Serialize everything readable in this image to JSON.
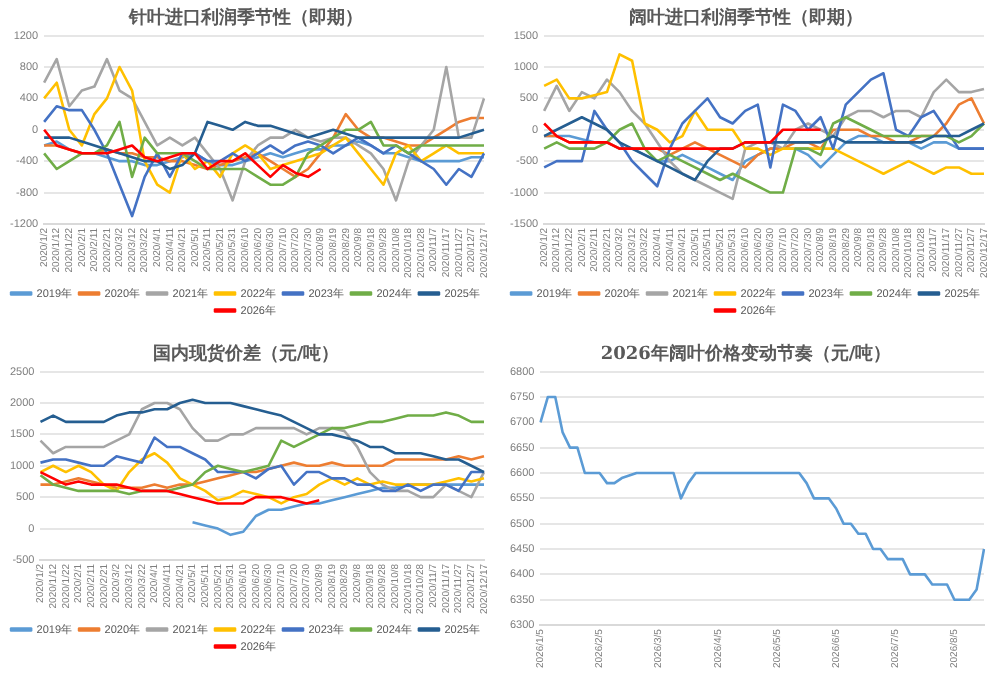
{
  "chart_data": [
    {
      "type": "line",
      "title": "针叶进口利润季节性（即期）",
      "categories": [
        "2020/1/2",
        "2020/1/12",
        "2020/1/22",
        "2020/2/1",
        "2020/2/11",
        "2020/2/21",
        "2020/3/2",
        "2020/3/12",
        "2020/3/22",
        "2020/4/1",
        "2020/4/11",
        "2020/4/21",
        "2020/5/1",
        "2020/5/11",
        "2020/5/21",
        "2020/5/31",
        "2020/6/10",
        "2020/6/20",
        "2020/6/30",
        "2020/7/10",
        "2020/7/20",
        "2020/7/30",
        "2020/8/9",
        "2020/8/19",
        "2020/8/29",
        "2020/9/8",
        "2020/9/18",
        "2020/9/28",
        "2020/10/8",
        "2020/10/18",
        "2020/10/28",
        "2020/11/7",
        "2020/11/17",
        "2020/11/27",
        "2020/12/7",
        "2020/12/17"
      ],
      "ylim": [
        -1200,
        1200
      ],
      "yticks": [
        -1200,
        -800,
        -400,
        0,
        400,
        800,
        1200
      ],
      "grid": "y",
      "legend": "bottom",
      "marker": "none",
      "series": [
        {
          "name": "2019年",
          "color": "#5b9bd5",
          "values": [
            -200,
            -150,
            -250,
            -300,
            -300,
            -350,
            -400,
            -400,
            -450,
            -450,
            -400,
            -350,
            -300,
            -400,
            -450,
            -450,
            -400,
            -350,
            -300,
            -350,
            -300,
            -250,
            -250,
            -200,
            -200,
            -150,
            -200,
            -300,
            -300,
            -350,
            -400,
            -400,
            -400,
            -400,
            -350,
            -350
          ]
        },
        {
          "name": "2020年",
          "color": "#ed7d31",
          "values": [
            -200,
            -200,
            -250,
            -300,
            -300,
            -250,
            -300,
            -300,
            -350,
            -350,
            -400,
            -400,
            -450,
            -500,
            -450,
            -400,
            -350,
            -300,
            -400,
            -500,
            -600,
            -500,
            -300,
            -100,
            200,
            0,
            -100,
            -100,
            -150,
            -200,
            -200,
            -100,
            0,
            100,
            150,
            150
          ]
        },
        {
          "name": "2021年",
          "color": "#a5a5a5",
          "values": [
            600,
            900,
            300,
            500,
            550,
            900,
            500,
            400,
            100,
            -200,
            -100,
            -200,
            -100,
            -300,
            -500,
            -900,
            -400,
            -200,
            -100,
            -100,
            0,
            -100,
            -150,
            -100,
            -100,
            -200,
            -300,
            -500,
            -900,
            -400,
            -200,
            0,
            800,
            -100,
            -100,
            400
          ]
        },
        {
          "name": "2022年",
          "color": "#ffc000",
          "values": [
            400,
            600,
            0,
            -200,
            200,
            400,
            800,
            500,
            -400,
            -700,
            -800,
            -300,
            -500,
            -400,
            -600,
            -300,
            -200,
            -300,
            -500,
            -450,
            -400,
            -350,
            -300,
            -200,
            -100,
            -300,
            -500,
            -700,
            -300,
            -200,
            -400,
            -300,
            -200,
            -300,
            -300,
            -300
          ]
        },
        {
          "name": "2023年",
          "color": "#4472c4",
          "values": [
            100,
            300,
            250,
            250,
            0,
            -300,
            -700,
            -1100,
            -600,
            -300,
            -600,
            -300,
            -300,
            -400,
            -400,
            -300,
            -400,
            -300,
            -200,
            -300,
            -200,
            -150,
            -200,
            -300,
            -200,
            -100,
            -200,
            -300,
            -200,
            -300,
            -400,
            -500,
            -700,
            -500,
            -600,
            -300
          ]
        },
        {
          "name": "2024年",
          "color": "#70ad47",
          "values": [
            -300,
            -500,
            -400,
            -300,
            -300,
            -200,
            100,
            -600,
            -100,
            -300,
            -300,
            -300,
            -400,
            -500,
            -500,
            -500,
            -500,
            -600,
            -700,
            -700,
            -600,
            -300,
            -200,
            -100,
            0,
            0,
            100,
            -200,
            -200,
            -300,
            -200,
            -200,
            -200,
            -200,
            -200,
            -200
          ]
        },
        {
          "name": "2025年",
          "color": "#255e91",
          "values": [
            -100,
            -100,
            -100,
            -150,
            -200,
            -250,
            -300,
            -350,
            -400,
            -400,
            -500,
            -450,
            -300,
            100,
            50,
            0,
            100,
            50,
            50,
            0,
            -50,
            -100,
            -50,
            0,
            -50,
            -100,
            -100,
            -100,
            -100,
            -100,
            -100,
            -100,
            -100,
            -100,
            -50,
            0
          ]
        },
        {
          "name": "2026年",
          "color": "#ff0000",
          "values": [
            0,
            -200,
            -250,
            -300,
            -300,
            -300,
            -250,
            -200,
            -350,
            -400,
            -350,
            -300,
            -300,
            -500,
            -400,
            -400,
            -300,
            -450,
            -600,
            -450,
            -550,
            -600,
            -500,
            null,
            null,
            null,
            null,
            null,
            null,
            null,
            null,
            null,
            null,
            null,
            null,
            null
          ]
        }
      ]
    },
    {
      "type": "line",
      "title": "阔叶进口利润季节性（即期）",
      "categories": [
        "2020/1/2",
        "2020/1/12",
        "2020/1/22",
        "2020/2/1",
        "2020/2/11",
        "2020/2/21",
        "2020/3/2",
        "2020/3/12",
        "2020/3/22",
        "2020/4/1",
        "2020/4/11",
        "2020/4/21",
        "2020/5/1",
        "2020/5/11",
        "2020/5/21",
        "2020/5/31",
        "2020/6/10",
        "2020/6/20",
        "2020/6/30",
        "2020/7/10",
        "2020/7/20",
        "2020/7/30",
        "2020/8/9",
        "2020/8/19",
        "2020/8/29",
        "2020/9/8",
        "2020/9/18",
        "2020/9/28",
        "2020/10/8",
        "2020/10/18",
        "2020/10/28",
        "2020/11/7",
        "2020/11/17",
        "2020/11/27",
        "2020/12/7",
        "2020/12/17"
      ],
      "ylim": [
        -1500,
        1500
      ],
      "yticks": [
        -1500,
        -1000,
        -500,
        0,
        500,
        1000,
        1500
      ],
      "grid": "y",
      "legend": "bottom",
      "marker": "none",
      "series": [
        {
          "name": "2019年",
          "color": "#5b9bd5",
          "values": [
            -100,
            -100,
            -100,
            -150,
            -200,
            -200,
            -300,
            -300,
            -400,
            -500,
            -500,
            -400,
            -500,
            -600,
            -700,
            -800,
            -500,
            -400,
            -300,
            -300,
            -300,
            -400,
            -600,
            -400,
            -200,
            -100,
            -100,
            -200,
            -200,
            -200,
            -300,
            -200,
            -200,
            -300,
            -300,
            -300
          ]
        },
        {
          "name": "2020年",
          "color": "#ed7d31",
          "values": [
            -100,
            -100,
            -200,
            -200,
            -200,
            -200,
            -300,
            -300,
            -300,
            -300,
            -400,
            -300,
            -200,
            -300,
            -400,
            -500,
            -600,
            -400,
            -300,
            -300,
            -200,
            -200,
            -300,
            0,
            0,
            0,
            -100,
            -100,
            -200,
            -200,
            -100,
            -100,
            100,
            400,
            500,
            100
          ]
        },
        {
          "name": "2021年",
          "color": "#a5a5a5",
          "values": [
            300,
            700,
            300,
            600,
            500,
            800,
            600,
            300,
            100,
            -200,
            -500,
            -700,
            -800,
            -900,
            -1000,
            -1100,
            -300,
            -200,
            -200,
            -300,
            0,
            100,
            0,
            -100,
            200,
            300,
            300,
            200,
            300,
            300,
            200,
            600,
            800,
            600,
            600,
            650
          ]
        },
        {
          "name": "2022年",
          "color": "#ffc000",
          "values": [
            700,
            800,
            500,
            500,
            550,
            600,
            1200,
            1100,
            100,
            0,
            -200,
            -100,
            300,
            0,
            0,
            0,
            -300,
            -300,
            -400,
            -300,
            -300,
            -300,
            -300,
            -300,
            -400,
            -500,
            -600,
            -700,
            -600,
            -500,
            -600,
            -700,
            -600,
            -600,
            -700,
            -700
          ]
        },
        {
          "name": "2023年",
          "color": "#4472c4",
          "values": [
            -600,
            -500,
            -500,
            -500,
            300,
            0,
            -200,
            -500,
            -700,
            -900,
            -300,
            100,
            300,
            500,
            200,
            100,
            300,
            400,
            -600,
            400,
            300,
            0,
            200,
            -300,
            400,
            600,
            800,
            900,
            0,
            -100,
            200,
            300,
            0,
            -300,
            -300,
            -300
          ]
        },
        {
          "name": "2024年",
          "color": "#70ad47",
          "values": [
            -300,
            -200,
            -300,
            -300,
            -300,
            -200,
            0,
            100,
            -300,
            -500,
            -400,
            -500,
            -600,
            -700,
            -800,
            -700,
            -800,
            -900,
            -1000,
            -1000,
            -300,
            -300,
            -400,
            100,
            200,
            100,
            0,
            -100,
            -100,
            -100,
            -100,
            -100,
            -100,
            -200,
            -100,
            100
          ]
        },
        {
          "name": "2025年",
          "color": "#255e91",
          "values": [
            -100,
            0,
            100,
            200,
            100,
            0,
            -200,
            -300,
            -400,
            -500,
            -600,
            -700,
            -800,
            -500,
            -300,
            -300,
            -200,
            -200,
            -200,
            -200,
            -200,
            -200,
            -200,
            -100,
            -200,
            -200,
            -200,
            -200,
            -200,
            -200,
            -200,
            -100,
            -100,
            -100,
            0,
            100
          ]
        },
        {
          "name": "2026年",
          "color": "#ff0000",
          "values": [
            100,
            -100,
            -200,
            -200,
            -200,
            -200,
            -300,
            -300,
            -300,
            -300,
            -300,
            -300,
            -300,
            -300,
            -300,
            -300,
            -200,
            -200,
            -200,
            0,
            0,
            0,
            0,
            null,
            null,
            null,
            null,
            null,
            null,
            null,
            null,
            null,
            null,
            null,
            null,
            null
          ]
        }
      ]
    },
    {
      "type": "line",
      "title": "国内现货价差（元/吨）",
      "categories": [
        "2020/1/2",
        "2020/1/12",
        "2020/1/22",
        "2020/2/1",
        "2020/2/11",
        "2020/2/21",
        "2020/3/2",
        "2020/3/12",
        "2020/3/22",
        "2020/4/1",
        "2020/4/11",
        "2020/4/21",
        "2020/5/1",
        "2020/5/11",
        "2020/5/21",
        "2020/5/31",
        "2020/6/10",
        "2020/6/20",
        "2020/6/30",
        "2020/7/10",
        "2020/7/20",
        "2020/7/30",
        "2020/8/9",
        "2020/8/19",
        "2020/8/29",
        "2020/9/8",
        "2020/9/18",
        "2020/9/28",
        "2020/10/8",
        "2020/10/18",
        "2020/10/28",
        "2020/11/7",
        "2020/11/17",
        "2020/11/27",
        "2020/12/7",
        "2020/12/17"
      ],
      "ylim": [
        -500,
        2500
      ],
      "yticks": [
        -500,
        0,
        500,
        1000,
        1500,
        2000,
        2500
      ],
      "grid": "y",
      "legend": "bottom",
      "marker": "none",
      "series": [
        {
          "name": "2019年",
          "color": "#5b9bd5",
          "values": [
            null,
            null,
            null,
            null,
            null,
            null,
            null,
            null,
            null,
            null,
            null,
            null,
            100,
            50,
            0,
            -100,
            -50,
            200,
            300,
            300,
            350,
            400,
            400,
            450,
            500,
            550,
            600,
            650,
            650,
            700,
            700,
            700,
            700,
            700,
            700,
            700
          ]
        },
        {
          "name": "2020年",
          "color": "#ed7d31",
          "values": [
            700,
            700,
            750,
            800,
            750,
            700,
            650,
            650,
            650,
            700,
            650,
            700,
            700,
            750,
            800,
            850,
            900,
            900,
            950,
            1000,
            1050,
            1000,
            1000,
            1050,
            1000,
            1000,
            1000,
            1000,
            1100,
            1100,
            1100,
            1100,
            1100,
            1150,
            1100,
            1150
          ]
        },
        {
          "name": "2021年",
          "color": "#a5a5a5",
          "values": [
            1400,
            1200,
            1300,
            1300,
            1300,
            1300,
            1400,
            1500,
            1900,
            2000,
            2000,
            1900,
            1600,
            1400,
            1400,
            1500,
            1500,
            1600,
            1600,
            1600,
            1600,
            1500,
            1600,
            1600,
            1550,
            1300,
            900,
            700,
            600,
            600,
            500,
            500,
            700,
            600,
            500,
            900
          ]
        },
        {
          "name": "2022年",
          "color": "#ffc000",
          "values": [
            900,
            1000,
            900,
            1000,
            900,
            700,
            600,
            900,
            1100,
            1200,
            1050,
            800,
            700,
            600,
            450,
            500,
            600,
            550,
            500,
            400,
            500,
            550,
            700,
            800,
            700,
            800,
            700,
            750,
            700,
            700,
            700,
            700,
            750,
            800,
            750,
            800
          ]
        },
        {
          "name": "2023年",
          "color": "#4472c4",
          "values": [
            1050,
            1100,
            1100,
            1050,
            1000,
            1000,
            1150,
            1100,
            1050,
            1450,
            1300,
            1300,
            1200,
            1100,
            900,
            900,
            900,
            800,
            950,
            1000,
            700,
            900,
            900,
            800,
            800,
            700,
            700,
            600,
            600,
            700,
            600,
            700,
            700,
            600,
            900,
            900
          ]
        },
        {
          "name": "2024年",
          "color": "#70ad47",
          "values": [
            850,
            700,
            650,
            600,
            600,
            600,
            600,
            550,
            600,
            600,
            600,
            650,
            700,
            900,
            1000,
            950,
            900,
            950,
            1000,
            1400,
            1300,
            1400,
            1500,
            1600,
            1600,
            1650,
            1700,
            1700,
            1750,
            1800,
            1800,
            1800,
            1850,
            1800,
            1700,
            1700
          ]
        },
        {
          "name": "2025年",
          "color": "#255e91",
          "values": [
            1700,
            1800,
            1700,
            1700,
            1700,
            1700,
            1800,
            1850,
            1850,
            1900,
            1900,
            2000,
            2050,
            2000,
            2000,
            2000,
            1950,
            1900,
            1850,
            1800,
            1700,
            1600,
            1500,
            1500,
            1450,
            1400,
            1300,
            1300,
            1200,
            1200,
            1200,
            1150,
            1100,
            1100,
            1000,
            900
          ]
        },
        {
          "name": "2026年",
          "color": "#ff0000",
          "values": [
            900,
            800,
            700,
            750,
            700,
            700,
            700,
            650,
            600,
            600,
            600,
            550,
            500,
            450,
            400,
            400,
            400,
            500,
            500,
            500,
            450,
            400,
            450,
            null,
            null,
            null,
            null,
            null,
            null,
            null,
            null,
            null,
            null,
            null,
            null,
            null
          ]
        }
      ]
    },
    {
      "type": "line",
      "title": "2026年阔叶价格变动节奏（元/吨）",
      "categories": [
        "2026/1/5",
        null,
        null,
        null,
        null,
        null,
        null,
        null,
        "2026/2/5",
        null,
        null,
        null,
        null,
        null,
        null,
        null,
        "2026/3/5",
        null,
        null,
        null,
        null,
        null,
        null,
        null,
        "2026/4/5",
        null,
        null,
        null,
        null,
        null,
        null,
        null,
        "2026/5/5",
        null,
        null,
        null,
        null,
        null,
        null,
        null,
        "2026/6/5",
        null,
        null,
        null,
        null,
        null,
        null,
        null,
        "2026/7/5",
        null,
        null,
        null,
        null,
        null,
        null,
        null,
        "2026/8/5",
        null,
        null,
        null,
        null
      ],
      "ylim": [
        6300,
        6800
      ],
      "yticks": [
        6300,
        6350,
        6400,
        6450,
        6500,
        6550,
        6600,
        6650,
        6700,
        6750,
        6800
      ],
      "grid": "y",
      "marker": "none",
      "series": [
        {
          "color": "#5b9bd5",
          "values": [
            6700,
            6750,
            6750,
            6680,
            6650,
            6650,
            6600,
            6600,
            6600,
            6580,
            6580,
            6590,
            6595,
            6600,
            6600,
            6600,
            6600,
            6600,
            6600,
            6550,
            6580,
            6600,
            6600,
            6600,
            6600,
            6600,
            6600,
            6600,
            6600,
            6600,
            6600,
            6600,
            6600,
            6600,
            6600,
            6600,
            6580,
            6550,
            6550,
            6550,
            6530,
            6500,
            6500,
            6480,
            6480,
            6450,
            6450,
            6430,
            6430,
            6430,
            6400,
            6400,
            6400,
            6380,
            6380,
            6380,
            6350,
            6350,
            6350,
            6370,
            6450
          ]
        }
      ]
    }
  ]
}
